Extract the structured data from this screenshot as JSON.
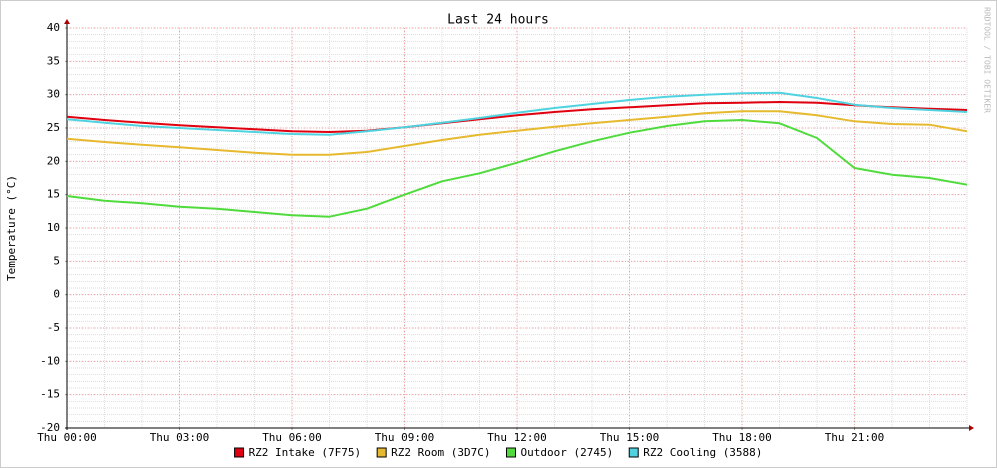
{
  "chart_data": {
    "type": "line",
    "title": "Last 24 hours",
    "y_label": "Temperature (°C)",
    "side_text": "RRDTOOL / TOBI OETIKER",
    "x": [
      0,
      1,
      2,
      3,
      4,
      5,
      6,
      7,
      8,
      9,
      10,
      11,
      12,
      13,
      14,
      15,
      16,
      17,
      18,
      19,
      20,
      21,
      22,
      23,
      24
    ],
    "xlim": [
      0,
      24
    ],
    "xticks": [
      {
        "value": 0,
        "label": "Thu 00:00"
      },
      {
        "value": 3,
        "label": "Thu 03:00"
      },
      {
        "value": 6,
        "label": "Thu 06:00"
      },
      {
        "value": 9,
        "label": "Thu 09:00"
      },
      {
        "value": 12,
        "label": "Thu 12:00"
      },
      {
        "value": 15,
        "label": "Thu 15:00"
      },
      {
        "value": 18,
        "label": "Thu 18:00"
      },
      {
        "value": 21,
        "label": "Thu 21:00"
      }
    ],
    "ylim": [
      -20,
      40
    ],
    "yticks": [
      -20,
      -15,
      -10,
      -5,
      0,
      5,
      10,
      15,
      20,
      25,
      30,
      35,
      40
    ],
    "grid": true,
    "legend": "bottom",
    "series": [
      {
        "name": "RZ2 Intake (7F75)",
        "color": "#e0000f",
        "values": [
          26.7,
          26.2,
          25.8,
          25.4,
          25.1,
          24.8,
          24.5,
          24.4,
          24.6,
          25.1,
          25.7,
          26.3,
          26.9,
          27.4,
          27.8,
          28.1,
          28.4,
          28.7,
          28.8,
          28.9,
          28.8,
          28.4,
          28.1,
          27.9,
          27.7
        ]
      },
      {
        "name": "RZ2 Room (3D7C)",
        "color": "#e6b92e",
        "values": [
          23.4,
          22.9,
          22.5,
          22.1,
          21.7,
          21.3,
          21.0,
          21.0,
          21.4,
          22.3,
          23.2,
          24.0,
          24.6,
          25.2,
          25.7,
          26.2,
          26.7,
          27.2,
          27.5,
          27.5,
          26.9,
          26.0,
          25.6,
          25.5,
          24.5
        ]
      },
      {
        "name": "Outdoor (2745)",
        "color": "#4fdb3c",
        "values": [
          14.8,
          14.1,
          13.7,
          13.2,
          12.9,
          12.4,
          11.9,
          11.7,
          12.9,
          15.0,
          17.0,
          18.2,
          19.8,
          21.5,
          23.0,
          24.3,
          25.3,
          26.0,
          26.2,
          25.7,
          23.5,
          19.0,
          18.0,
          17.5,
          16.5
        ]
      },
      {
        "name": "RZ2 Cooling (3588)",
        "color": "#4fd3e0",
        "values": [
          26.3,
          25.8,
          25.3,
          25.0,
          24.7,
          24.4,
          24.1,
          24.0,
          24.5,
          25.1,
          25.8,
          26.5,
          27.3,
          28.0,
          28.6,
          29.2,
          29.7,
          30.0,
          30.2,
          30.3,
          29.5,
          28.5,
          28.0,
          27.7,
          27.4
        ]
      }
    ]
  }
}
